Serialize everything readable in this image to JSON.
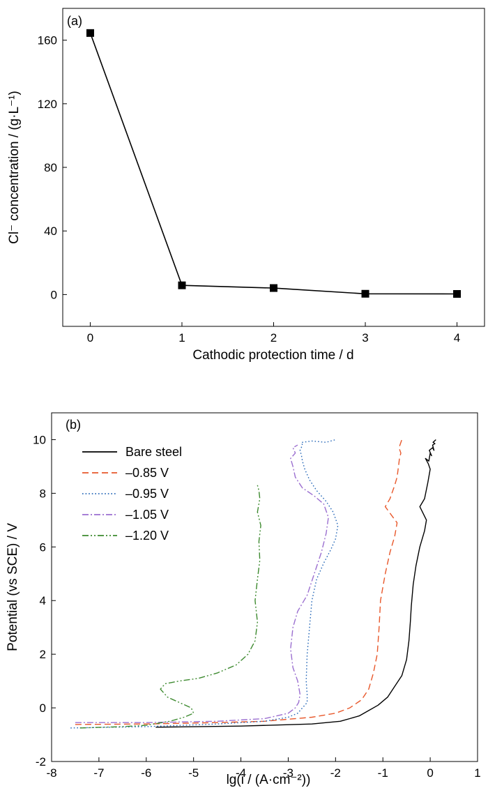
{
  "chart_data": [
    {
      "type": "line",
      "panel_label": "(a)",
      "xlabel": "Cathodic protection time / d",
      "ylabel": "Cl⁻ concentration / (g·L⁻¹)",
      "xlim": [
        -0.3,
        4.3
      ],
      "ylim": [
        -20,
        180
      ],
      "xticks": [
        0,
        1,
        2,
        3,
        4
      ],
      "yticks": [
        0,
        40,
        80,
        120,
        160
      ],
      "grid": false,
      "series": [
        {
          "color": "#000000",
          "marker": "square",
          "x": [
            0,
            1,
            2,
            3,
            4
          ],
          "y": [
            164.5,
            5.8,
            4.1,
            0.5,
            0.4
          ]
        }
      ]
    },
    {
      "type": "line",
      "panel_label": "(b)",
      "xlabel": "lg(i / (A·cm⁻²))",
      "ylabel": "Potential (vs SCE) / V",
      "xlim": [
        -8,
        1
      ],
      "ylim": [
        -2,
        11
      ],
      "xticks": [
        -8,
        -7,
        -6,
        -5,
        -4,
        -3,
        -2,
        -1,
        0,
        1
      ],
      "yticks": [
        -2,
        0,
        2,
        4,
        6,
        8,
        10
      ],
      "grid": false,
      "legend_position": "top-left",
      "series": [
        {
          "name": "Bare steel",
          "color": "#000000",
          "dash": "solid",
          "x": [
            -5.8,
            -4,
            -2.5,
            -1.9,
            -1.7,
            -1.5,
            -1.3,
            -1.1,
            -0.9,
            -0.75,
            -0.6,
            -0.5,
            -0.45,
            -0.42,
            -0.4,
            -0.36,
            -0.3,
            -0.22,
            -0.12,
            -0.08,
            -0.22,
            -0.12,
            -0.05,
            0.0,
            -0.04,
            -0.1,
            -0.03,
            0.0,
            0.03,
            -0.02,
            0.05,
            0.08,
            0.05,
            0.1,
            0.06,
            0.12
          ],
          "y": [
            -0.72,
            -0.68,
            -0.6,
            -0.5,
            -0.4,
            -0.3,
            -0.1,
            0.1,
            0.4,
            0.8,
            1.2,
            1.8,
            2.5,
            3.2,
            3.8,
            4.6,
            5.3,
            6.0,
            6.6,
            7.0,
            7.5,
            7.8,
            8.4,
            8.9,
            9.1,
            9.3,
            9.2,
            9.5,
            9.4,
            9.6,
            9.7,
            9.6,
            9.8,
            9.85,
            9.9,
            10.0
          ]
        },
        {
          "name": "–0.85 V",
          "color": "#e8572a",
          "dash": "dashed",
          "x": [
            -7.5,
            -6,
            -4.5,
            -3.5,
            -2.5,
            -2.0,
            -1.7,
            -1.45,
            -1.3,
            -1.2,
            -1.12,
            -1.08,
            -1.05,
            -1.0,
            -0.95,
            -0.85,
            -0.75,
            -0.7,
            -0.95,
            -0.85,
            -0.75,
            -0.7,
            -0.67,
            -0.65,
            -0.62,
            -0.66,
            -0.64,
            -0.6
          ],
          "y": [
            -0.62,
            -0.6,
            -0.55,
            -0.5,
            -0.35,
            -0.2,
            0.0,
            0.3,
            0.7,
            1.3,
            2.0,
            3.0,
            4.0,
            4.5,
            5.0,
            5.8,
            6.4,
            6.9,
            7.5,
            7.8,
            8.3,
            8.6,
            9.0,
            9.3,
            9.5,
            9.7,
            9.8,
            10.0
          ]
        },
        {
          "name": "–0.95 V",
          "color": "#2466b7",
          "dash": "dotted",
          "x": [
            -7.6,
            -6,
            -4.5,
            -3.5,
            -3.0,
            -2.8,
            -2.7,
            -2.6,
            -2.6,
            -2.62,
            -2.6,
            -2.55,
            -2.5,
            -2.4,
            -2.25,
            -2.1,
            -2.0,
            -1.95,
            -2.05,
            -2.2,
            -2.4,
            -2.55,
            -2.65,
            -2.7,
            -2.72,
            -2.75,
            -2.7,
            -2.72,
            -2.7,
            -2.5,
            -2.2,
            -2.0
          ],
          "y": [
            -0.75,
            -0.7,
            -0.6,
            -0.5,
            -0.35,
            -0.2,
            0.0,
            0.2,
            0.5,
            1.0,
            2.0,
            3.0,
            4.0,
            4.8,
            5.4,
            5.9,
            6.3,
            6.8,
            7.3,
            7.7,
            8.1,
            8.5,
            8.9,
            9.2,
            9.4,
            9.6,
            9.8,
            9.9,
            9.9,
            9.95,
            9.9,
            10.0
          ]
        },
        {
          "name": "–1.05 V",
          "color": "#9b6fd0",
          "dash": "dashdot",
          "x": [
            -7.5,
            -6,
            -4.5,
            -3.5,
            -3.0,
            -2.85,
            -2.78,
            -2.75,
            -2.8,
            -2.9,
            -2.95,
            -2.9,
            -2.8,
            -2.6,
            -2.45,
            -2.3,
            -2.2,
            -2.15,
            -2.25,
            -2.45,
            -2.7,
            -2.85,
            -2.9,
            -2.95,
            -2.85,
            -2.9,
            -2.8
          ],
          "y": [
            -0.55,
            -0.55,
            -0.5,
            -0.4,
            -0.2,
            0.0,
            0.2,
            0.5,
            1.0,
            1.5,
            2.2,
            3.0,
            3.6,
            4.2,
            5.0,
            5.8,
            6.5,
            7.1,
            7.6,
            7.9,
            8.2,
            8.6,
            9.0,
            9.3,
            9.5,
            9.7,
            9.8
          ]
        },
        {
          "name": "–1.20 V",
          "color": "#3d8a2f",
          "dash": "dashdotdot",
          "x": [
            -7.4,
            -6.5,
            -6.0,
            -5.5,
            -5.2,
            -5.0,
            -5.05,
            -5.3,
            -5.55,
            -5.7,
            -5.6,
            -5.3,
            -4.9,
            -4.5,
            -4.1,
            -3.85,
            -3.7,
            -3.65,
            -3.7,
            -3.65,
            -3.6,
            -3.62,
            -3.58,
            -3.65,
            -3.6,
            -3.62,
            -3.65
          ],
          "y": [
            -0.75,
            -0.7,
            -0.65,
            -0.5,
            -0.35,
            -0.2,
            0.0,
            0.2,
            0.4,
            0.7,
            0.9,
            1.0,
            1.1,
            1.3,
            1.6,
            2.0,
            2.5,
            3.2,
            4.0,
            4.8,
            5.5,
            6.2,
            6.8,
            7.3,
            7.8,
            8.1,
            8.3
          ]
        }
      ]
    }
  ]
}
